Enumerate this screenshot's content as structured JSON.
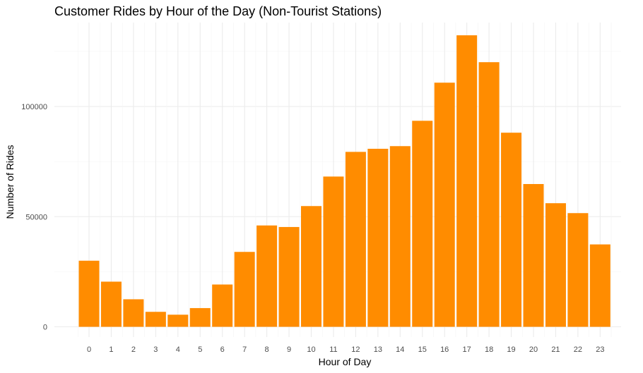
{
  "chart_data": {
    "type": "bar",
    "title": "Customer Rides by Hour of the Day (Non-Tourist Stations)",
    "xlabel": "Hour of Day",
    "ylabel": "Number of Rides",
    "categories": [
      "0",
      "1",
      "2",
      "3",
      "4",
      "5",
      "6",
      "7",
      "8",
      "9",
      "10",
      "11",
      "12",
      "13",
      "14",
      "15",
      "16",
      "17",
      "18",
      "19",
      "20",
      "21",
      "22",
      "23"
    ],
    "values": [
      30000,
      20500,
      12500,
      6800,
      5500,
      8500,
      19200,
      34000,
      46000,
      45300,
      54800,
      68200,
      79400,
      80800,
      82000,
      93500,
      110800,
      132300,
      120100,
      88100,
      64800,
      56100,
      51600,
      37400
    ],
    "yticks": [
      0,
      50000,
      100000
    ],
    "ytick_labels": [
      "0",
      "50000",
      "100000"
    ],
    "ylim": [
      0,
      135000
    ],
    "grid": true,
    "legend": "none",
    "bar_color": "#ff8c00",
    "theme": "minimal"
  }
}
